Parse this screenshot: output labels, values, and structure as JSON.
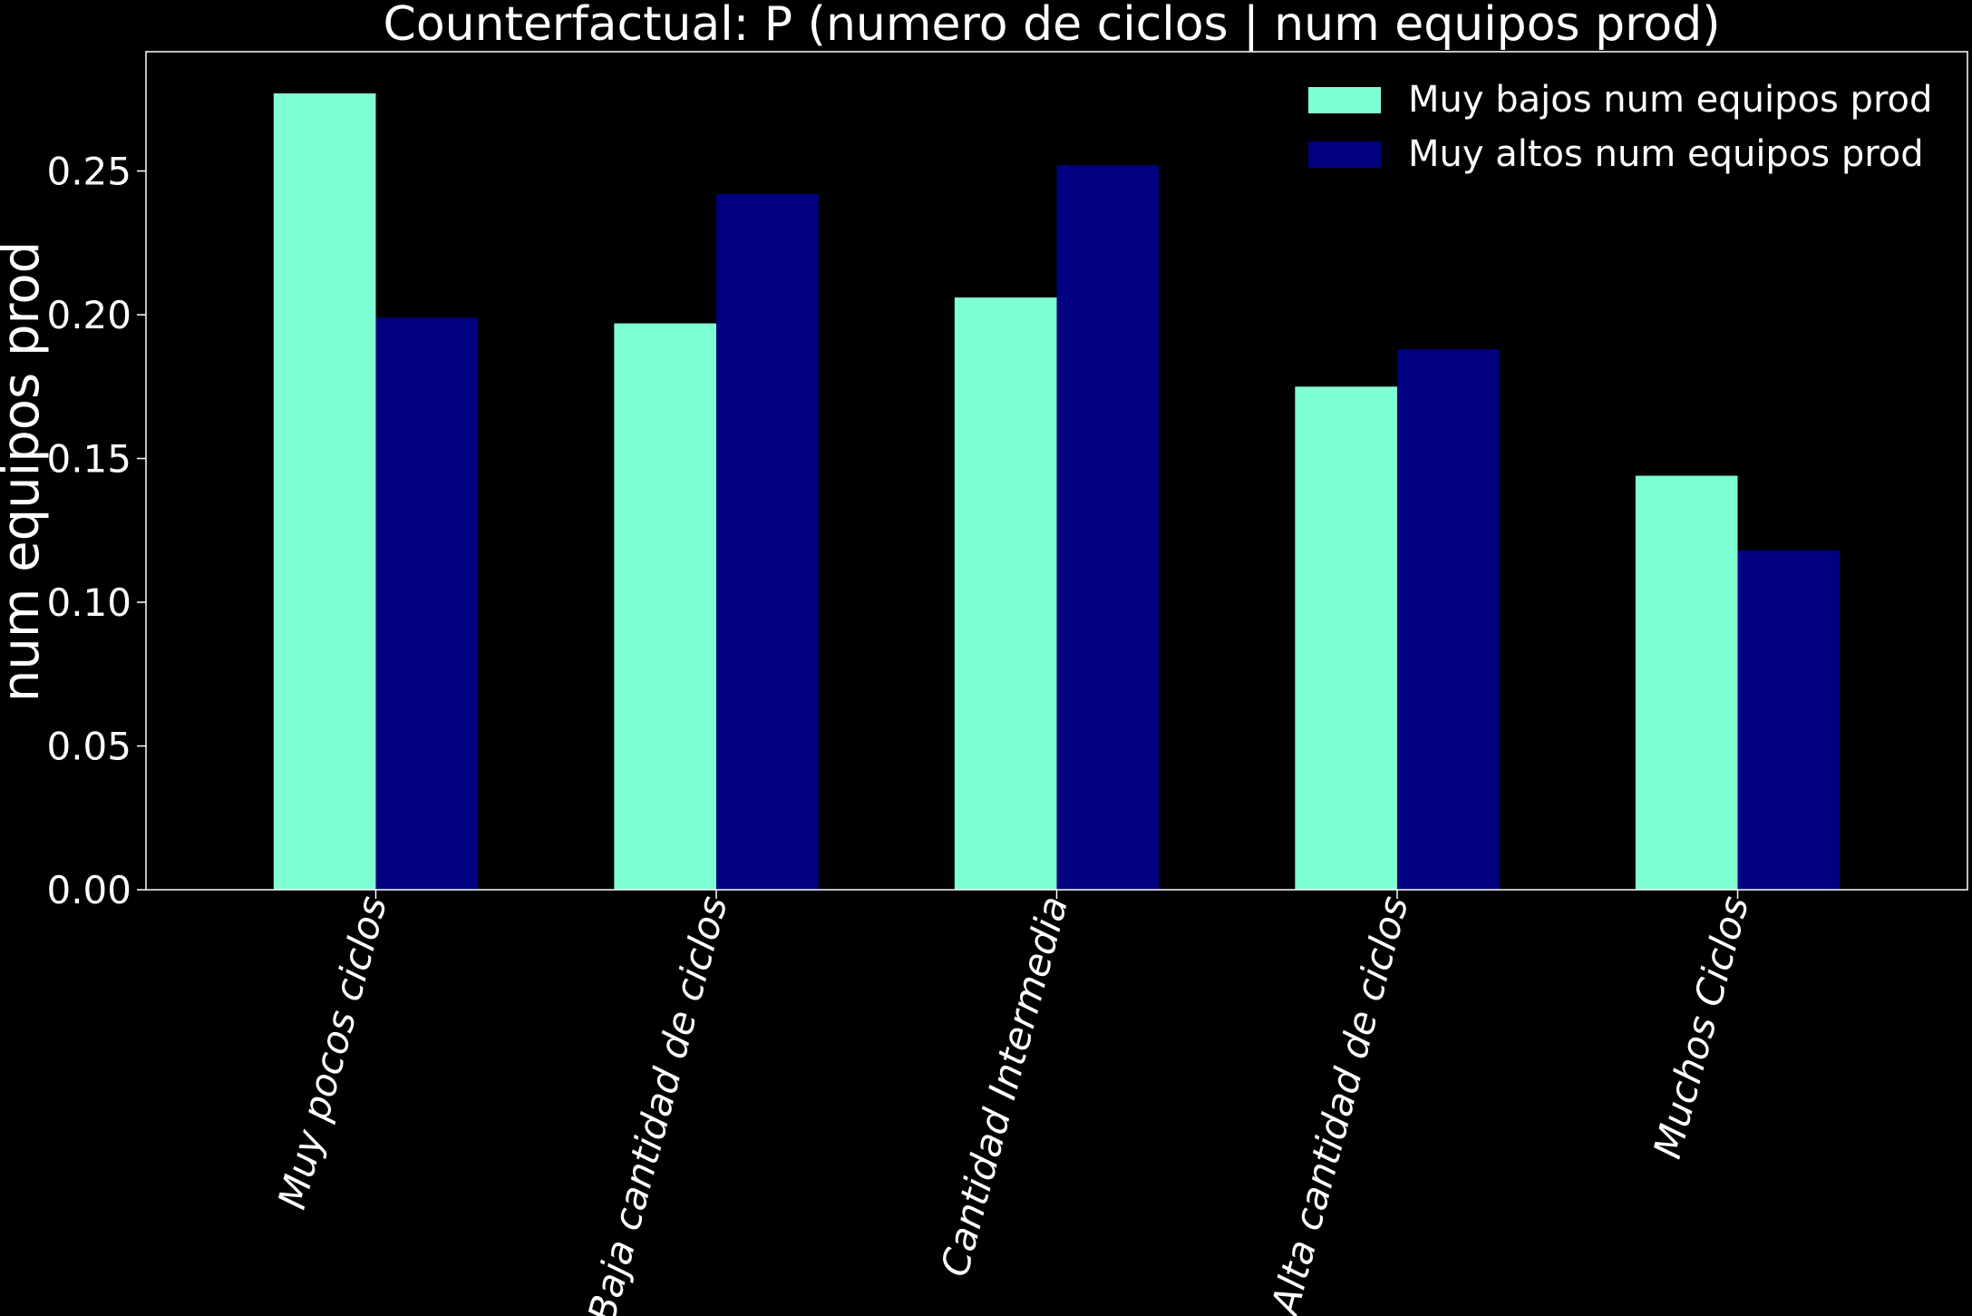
{
  "chart_data": {
    "type": "bar",
    "title": "Counterfactual: P (numero de ciclos | num equipos prod)",
    "xlabel": "",
    "ylabel": "num equipos prod",
    "categories": [
      "Muy pocos ciclos",
      "Baja cantidad de ciclos",
      "Cantidad Intermedia",
      "Alta cantidad de ciclos",
      "Muchos Ciclos"
    ],
    "series": [
      {
        "name": "Muy bajos num equipos prod",
        "color": "#7FFFD4",
        "values": [
          0.277,
          0.197,
          0.206,
          0.175,
          0.144
        ]
      },
      {
        "name": "Muy altos num equipos prod",
        "color": "#000080",
        "values": [
          0.199,
          0.242,
          0.252,
          0.188,
          0.118
        ]
      }
    ],
    "ylim": [
      0,
      0.2915
    ],
    "yticks": [
      "0.00",
      "0.05",
      "0.10",
      "0.15",
      "0.20",
      "0.25"
    ],
    "tick_rotation_deg": -75,
    "grid": false,
    "legend": "top-right",
    "background": "#000000",
    "axis_color": "#ffffff"
  }
}
